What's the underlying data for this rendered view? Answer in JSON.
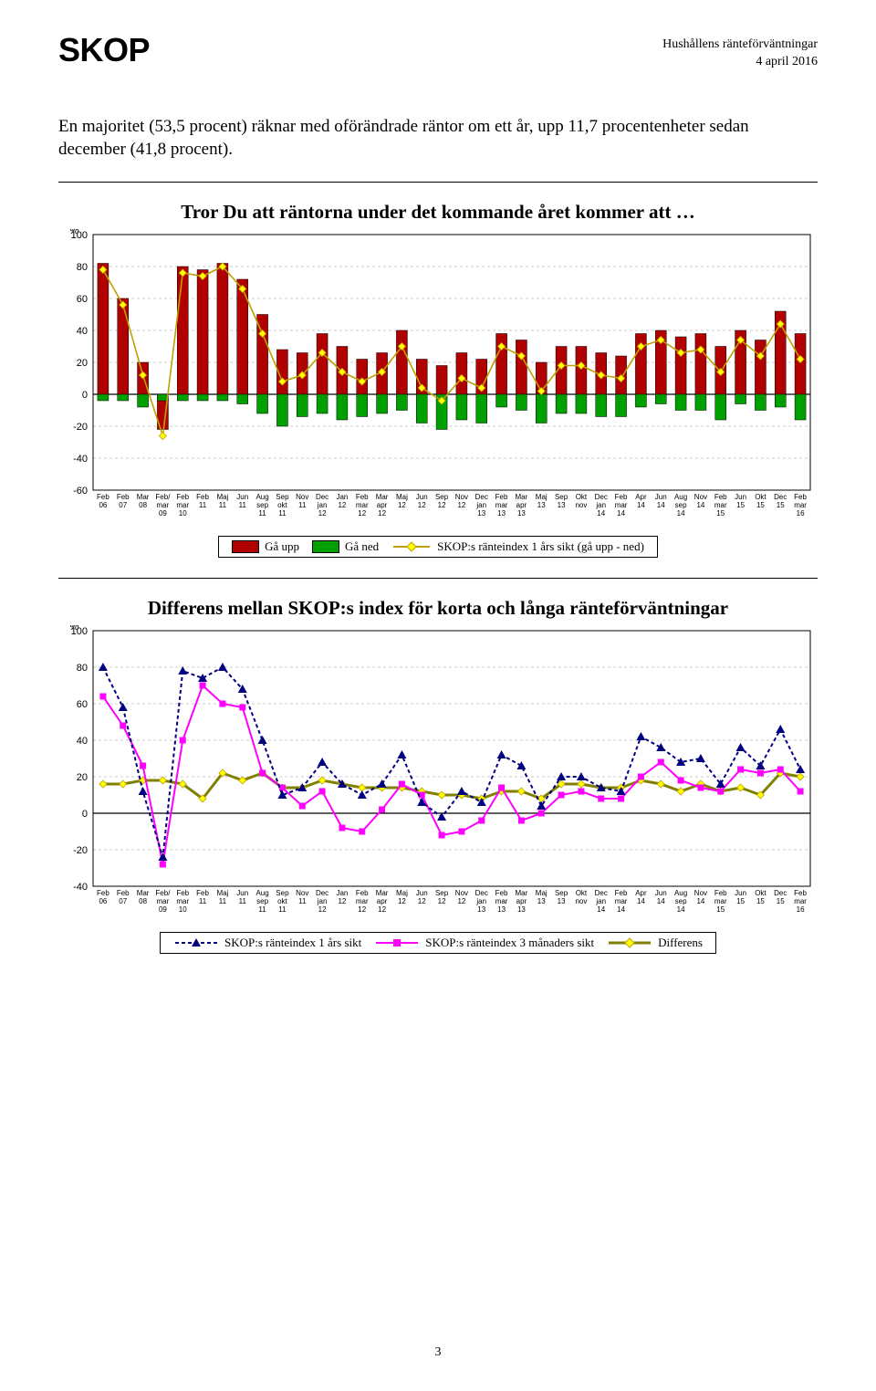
{
  "header": {
    "brand": "SKOP",
    "title_line1": "Hushållens ränteförväntningar",
    "title_line2": "4 april 2016"
  },
  "para": "En majoritet (53,5 procent) räknar med oförändrade räntor om ett år, upp 11,7 procentenheter sedan december (41,8 procent).",
  "chart1": {
    "title": "Tror Du att räntorna under det kommande året kommer att …",
    "y_label": "%",
    "y_min": -60,
    "y_max": 100,
    "y_step": 20,
    "x_labels_top": [
      "Feb",
      "Feb",
      "Mar",
      "Feb/",
      "Feb",
      "Feb",
      "Maj",
      "Jun",
      "Aug",
      "Sep",
      "Nov",
      "Dec",
      "Jan",
      "Feb",
      "Mar",
      "Maj",
      "Jun",
      "Sep",
      "Nov",
      "Dec",
      "Feb",
      "Mar",
      "Maj",
      "Sep",
      "Okt",
      "Dec",
      "Feb",
      "Apr",
      "Jun",
      "Aug",
      "Nov",
      "Feb",
      "Jun",
      "Okt",
      "Dec",
      "Feb"
    ],
    "x_labels_mid": [
      "06",
      "07",
      "08",
      "mar",
      "mar",
      "11",
      "11",
      "11",
      "sep",
      "okt",
      "11",
      "jan",
      "12",
      "mar",
      "apr",
      "12",
      "12",
      "12",
      "12",
      "jan",
      "mar",
      "apr",
      "13",
      "13",
      "nov",
      "jan",
      "mar",
      "14",
      "14",
      "sep",
      "14",
      "mar",
      "15",
      "15",
      "15",
      "mar"
    ],
    "x_labels_bot": [
      "",
      "",
      "",
      "09",
      "10",
      "",
      "",
      "",
      "11",
      "11",
      "",
      "12",
      "",
      "12",
      "12",
      "",
      "",
      "",
      "",
      "13",
      "13",
      "13",
      "",
      "",
      "",
      "14",
      "14",
      "",
      "",
      "14",
      "",
      "15",
      "",
      "",
      "",
      "16"
    ],
    "series": {
      "up": [
        82,
        60,
        20,
        -22,
        80,
        78,
        82,
        72,
        50,
        28,
        26,
        38,
        30,
        22,
        26,
        40,
        22,
        18,
        26,
        22,
        38,
        34,
        20,
        30,
        30,
        26,
        24,
        38,
        40,
        36,
        38,
        30,
        40,
        34,
        52,
        38
      ],
      "down": [
        -4,
        -4,
        -8,
        -4,
        -4,
        -4,
        -4,
        -6,
        -12,
        -20,
        -14,
        -12,
        -16,
        -14,
        -12,
        -10,
        -18,
        -22,
        -16,
        -18,
        -8,
        -10,
        -18,
        -12,
        -12,
        -14,
        -14,
        -8,
        -6,
        -10,
        -10,
        -16,
        -6,
        -10,
        -8,
        -16
      ],
      "diff_marker": [
        78,
        56,
        12,
        -26,
        76,
        74,
        80,
        66,
        38,
        8,
        12,
        26,
        14,
        8,
        14,
        30,
        4,
        -4,
        10,
        4,
        30,
        24,
        2,
        18,
        18,
        12,
        10,
        30,
        34,
        26,
        28,
        14,
        34,
        24,
        44,
        22
      ]
    },
    "colors": {
      "up": "#b00000",
      "down": "#00a000",
      "marker_fill": "#ffff00",
      "marker_stroke": "#c0a000",
      "grid": "#cccccc",
      "axis": "#000000"
    },
    "legend": {
      "up": "Gå upp",
      "down": "Gå ned",
      "diff": "SKOP:s ränteindex 1 års sikt (gå upp - ned)"
    }
  },
  "chart2": {
    "title": "Differens mellan SKOP:s index för korta och långa ränteförväntningar",
    "y_label": "%",
    "y_min": -40,
    "y_max": 100,
    "y_step": 20,
    "series": {
      "one_year": [
        80,
        58,
        12,
        -24,
        78,
        74,
        80,
        68,
        40,
        10,
        14,
        28,
        16,
        10,
        16,
        32,
        6,
        -2,
        12,
        6,
        32,
        26,
        4,
        20,
        20,
        14,
        12,
        42,
        36,
        28,
        30,
        16,
        36,
        26,
        46,
        24
      ],
      "three_month": [
        64,
        48,
        26,
        -28,
        40,
        70,
        60,
        58,
        22,
        14,
        4,
        12,
        -8,
        -10,
        2,
        16,
        10,
        -12,
        -10,
        -4,
        14,
        -4,
        0,
        10,
        12,
        8,
        8,
        20,
        28,
        18,
        14,
        12,
        24,
        22,
        24,
        12
      ],
      "diff": [
        16,
        16,
        18,
        18,
        16,
        8,
        22,
        18,
        22,
        14,
        14,
        18,
        16,
        14,
        14,
        14,
        12,
        10,
        10,
        8,
        12,
        12,
        8,
        16,
        16,
        14,
        14,
        18,
        16,
        12,
        16,
        12,
        14,
        10,
        22,
        20
      ]
    },
    "colors": {
      "one_year_stroke": "#000080",
      "one_year_fill": "#000080",
      "three_stroke": "#ff00ff",
      "three_fill": "#ff00ff",
      "diff_stroke": "#808000",
      "diff_marker_fill": "#ffff00",
      "diff_marker_stroke": "#c0a000",
      "grid": "#cccccc",
      "axis": "#000000"
    },
    "legend": {
      "one_year": "SKOP:s ränteindex 1 års sikt",
      "three": "SKOP:s ränteindex 3 månaders sikt",
      "diff": "Differens"
    }
  },
  "page_number": "3"
}
